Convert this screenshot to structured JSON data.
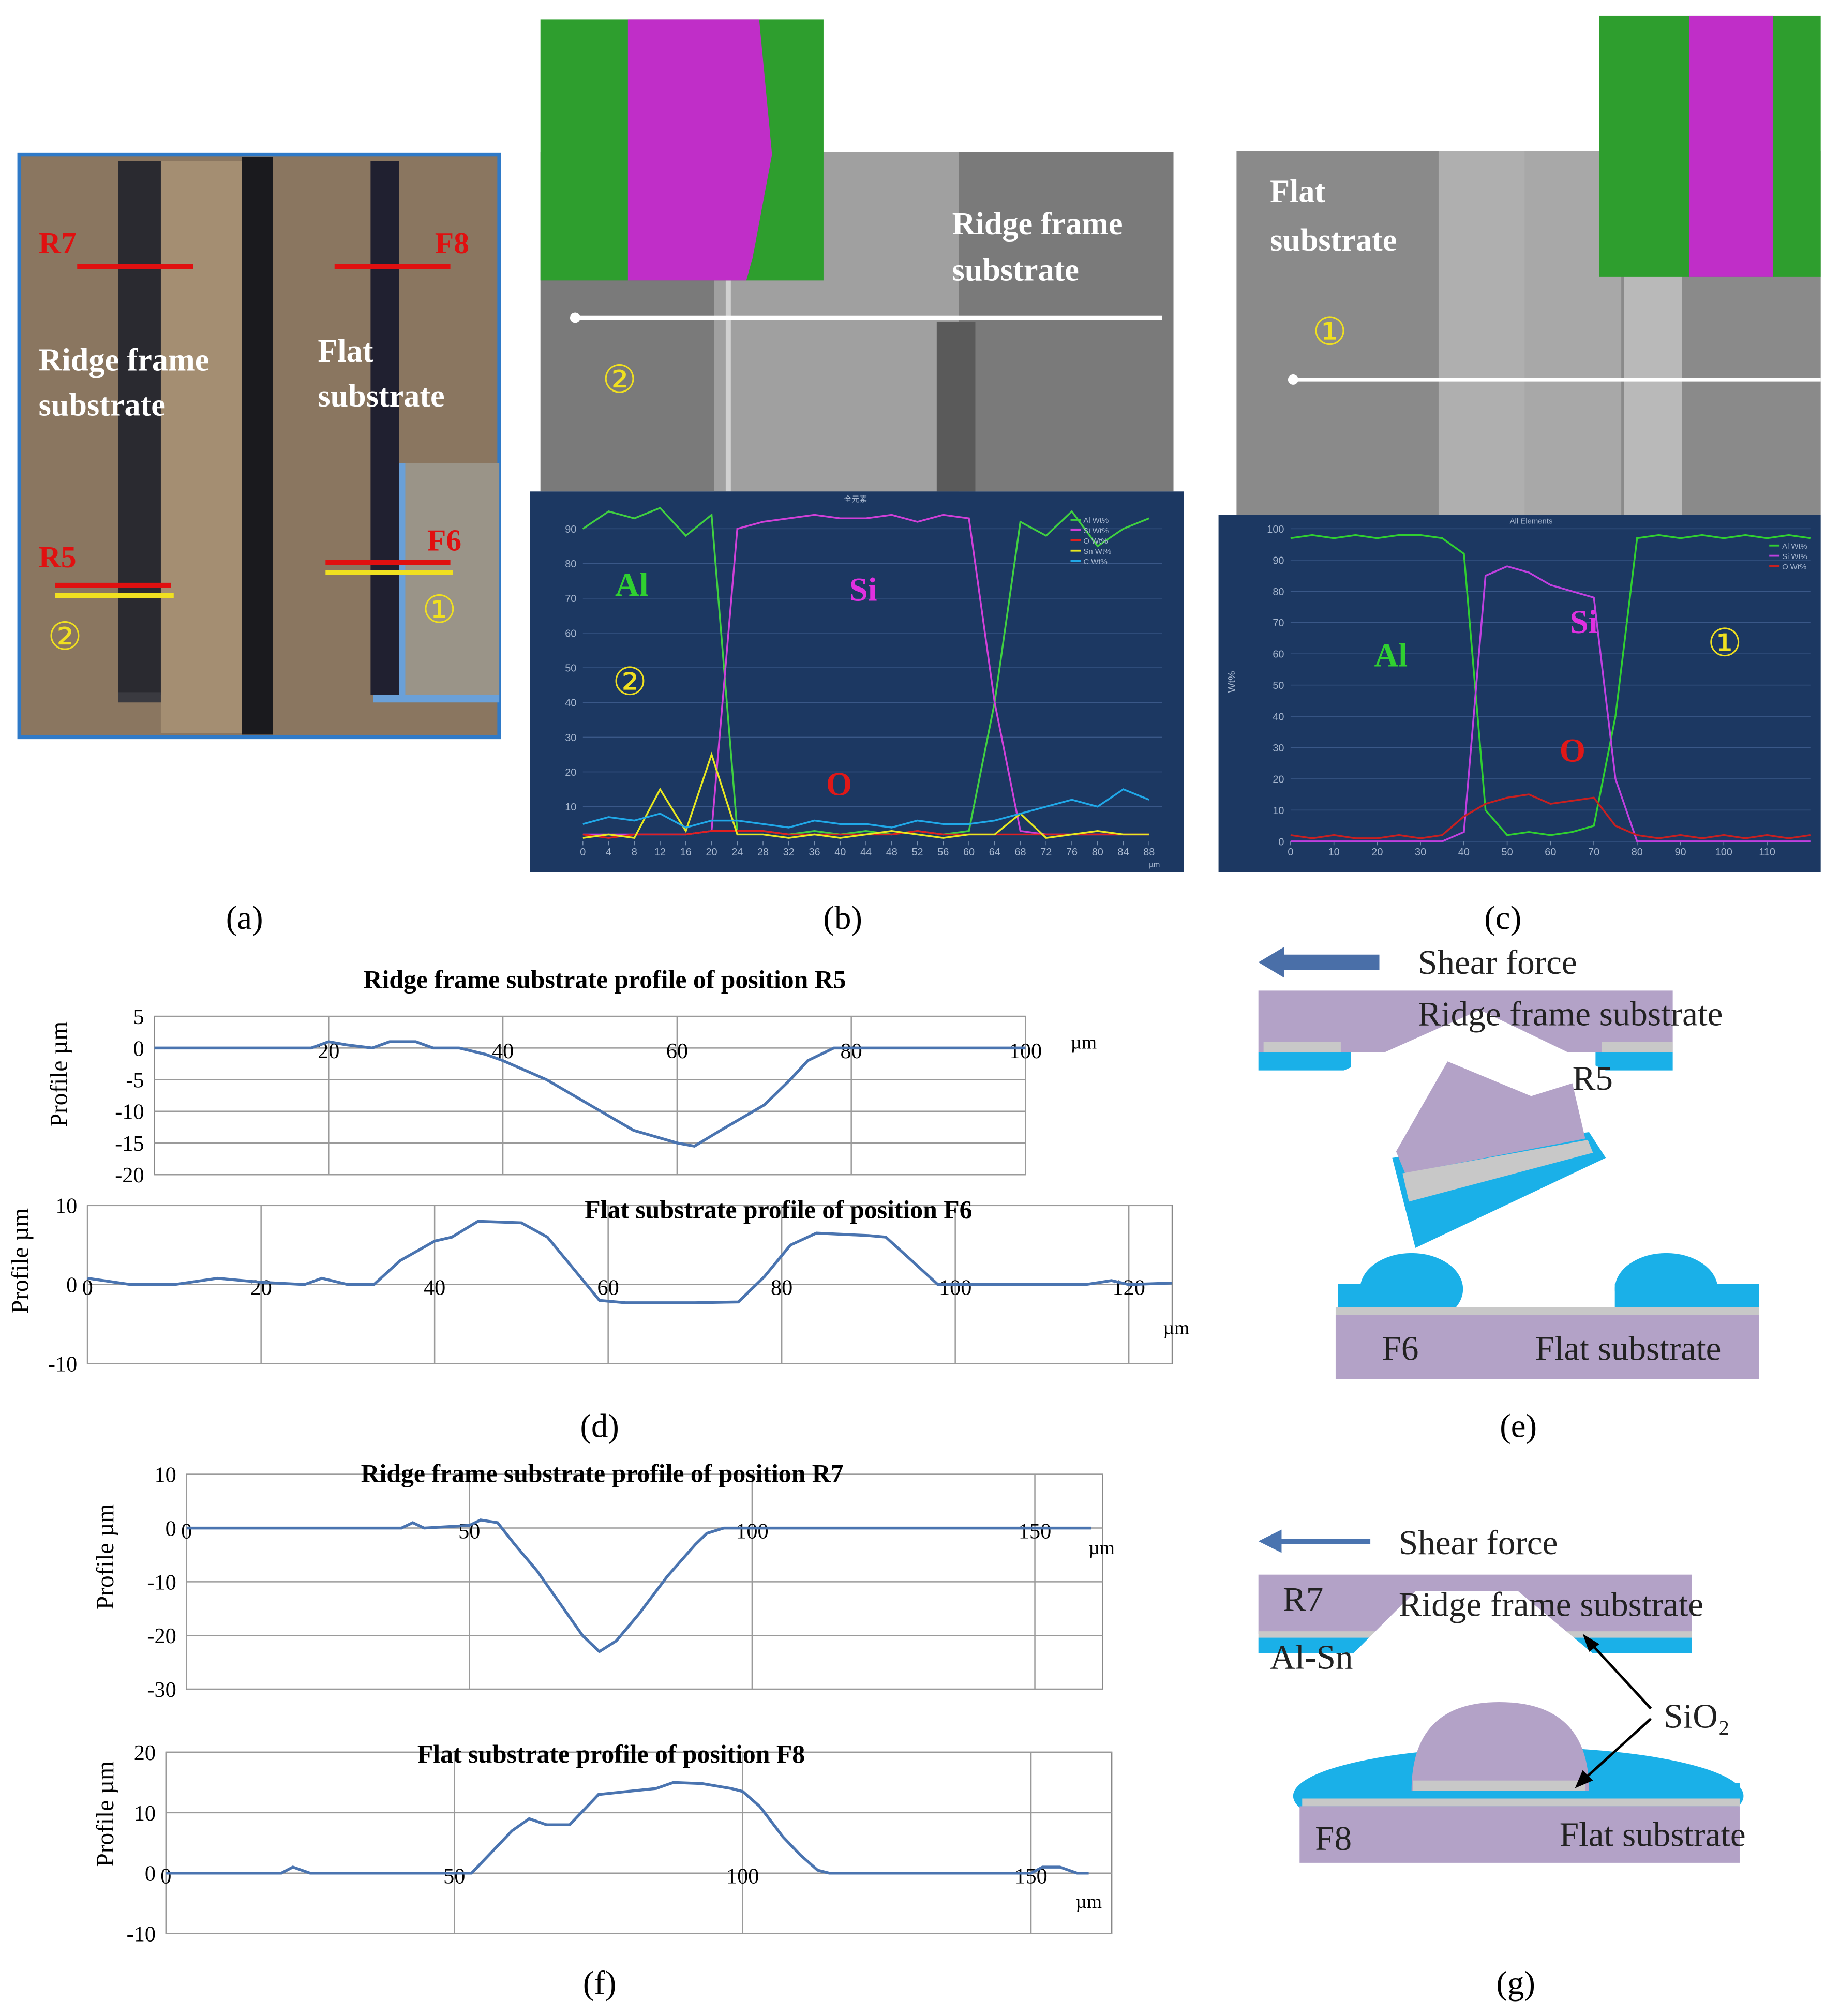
{
  "figure": {
    "labels": [
      "(a)",
      "(b)",
      "(c)",
      "(d)",
      "(e)",
      "(f)",
      "(g)"
    ],
    "a": {
      "texts": [
        "R7",
        "F8",
        "Ridge frame",
        "substrate",
        "Flat",
        "substrate",
        "R5",
        "F6",
        "②",
        "①"
      ]
    },
    "b": {
      "texts": [
        "Ridge frame",
        "substrate",
        "②",
        "Al",
        "Si",
        "O",
        "②"
      ]
    },
    "c": {
      "texts": [
        "Flat",
        "substrate",
        "①",
        "Al",
        "Si",
        "O",
        "①"
      ]
    },
    "e": {
      "texts": [
        "Shear force",
        "Ridge frame substrate",
        "R5",
        "F6",
        "Flat substrate"
      ]
    },
    "g": {
      "texts": [
        "Shear force",
        "R7",
        "Ridge frame substrate",
        "Al-Sn",
        "SiO₂",
        "F8",
        "Flat substrate"
      ]
    }
  },
  "chart_data": [
    {
      "type": "line",
      "title": "全元素",
      "xunit": "µm",
      "x": [
        0,
        4,
        8,
        12,
        16,
        20,
        24,
        28,
        32,
        36,
        40,
        44,
        48,
        52,
        56,
        60,
        64,
        68,
        72,
        76,
        80,
        84,
        88
      ],
      "series": [
        {
          "name": "Al Wt%",
          "color": "#40d040",
          "values": [
            90,
            95,
            93,
            96,
            88,
            94,
            3,
            3,
            2,
            3,
            2,
            3,
            2,
            3,
            2,
            3,
            40,
            92,
            88,
            95,
            85,
            90,
            93
          ]
        },
        {
          "name": "Si Wt%",
          "color": "#d040d8",
          "values": [
            2,
            2,
            2,
            2,
            2,
            3,
            90,
            92,
            93,
            94,
            93,
            93,
            94,
            92,
            94,
            93,
            40,
            3,
            2,
            2,
            2,
            2,
            2
          ]
        },
        {
          "name": "O Wt%",
          "color": "#e02020",
          "values": [
            2,
            1,
            2,
            2,
            2,
            3,
            3,
            3,
            2,
            2,
            2,
            2,
            2,
            3,
            2,
            2,
            2,
            2,
            2,
            2,
            2,
            2,
            2
          ]
        },
        {
          "name": "Sn Wt%",
          "color": "#e8e820",
          "values": [
            1,
            2,
            1,
            15,
            3,
            25,
            2,
            2,
            1,
            2,
            1,
            2,
            3,
            2,
            1,
            2,
            2,
            8,
            1,
            2,
            3,
            2,
            2
          ]
        },
        {
          "name": "C Wt%",
          "color": "#20a8e8",
          "values": [
            5,
            7,
            6,
            8,
            4,
            6,
            6,
            5,
            4,
            6,
            5,
            5,
            4,
            6,
            5,
            5,
            6,
            8,
            10,
            12,
            10,
            15,
            12
          ]
        }
      ],
      "xlim": [
        0,
        90
      ],
      "ylim": [
        0,
        100
      ],
      "xticks": [
        0,
        4,
        8,
        12,
        16,
        20,
        24,
        28,
        32,
        36,
        40,
        44,
        48,
        52,
        56,
        60,
        64,
        68,
        72,
        76,
        80,
        84,
        88
      ],
      "yticks": [
        10,
        20,
        30,
        40,
        50,
        60,
        70,
        80,
        90
      ],
      "grid": true,
      "legend": "top-right"
    },
    {
      "type": "line",
      "title": "All Elements",
      "ylabel": "Wt%",
      "x": [
        0,
        5,
        10,
        15,
        20,
        25,
        30,
        35,
        40,
        45,
        50,
        55,
        60,
        65,
        70,
        75,
        80,
        85,
        90,
        95,
        100,
        105,
        110,
        115,
        120
      ],
      "series": [
        {
          "name": "Al Wt%",
          "color": "#30d030",
          "values": [
            97,
            98,
            97,
            98,
            97,
            98,
            98,
            97,
            92,
            10,
            2,
            3,
            2,
            3,
            5,
            40,
            97,
            98,
            97,
            98,
            97,
            98,
            97,
            98,
            97
          ]
        },
        {
          "name": "Si Wt%",
          "color": "#c040e0",
          "values": [
            0,
            0,
            0,
            0,
            0,
            0,
            0,
            0,
            3,
            85,
            88,
            86,
            82,
            80,
            78,
            20,
            0,
            0,
            0,
            0,
            0,
            0,
            0,
            0,
            0
          ]
        },
        {
          "name": "O Wt%",
          "color": "#c82020",
          "values": [
            2,
            1,
            2,
            1,
            1,
            2,
            1,
            2,
            8,
            12,
            14,
            15,
            12,
            13,
            14,
            5,
            2,
            1,
            2,
            1,
            2,
            1,
            2,
            1,
            2
          ]
        }
      ],
      "xlim": [
        0,
        120
      ],
      "ylim": [
        0,
        100
      ],
      "xticks": [
        0,
        10,
        20,
        30,
        40,
        50,
        60,
        70,
        80,
        90,
        100,
        110
      ],
      "yticks": [
        0,
        10,
        20,
        30,
        40,
        50,
        60,
        70,
        80,
        90,
        100
      ],
      "grid": true,
      "legend": "top-right"
    },
    {
      "type": "line",
      "title": "Ridge frame substrate profile of position R5",
      "ylabel": "Profile µm",
      "xunit": "µm",
      "x": [
        0,
        10,
        18,
        20,
        22,
        25,
        27,
        30,
        32,
        35,
        38,
        40,
        45,
        50,
        55,
        60,
        62,
        65,
        70,
        73,
        75,
        78,
        80,
        90,
        100
      ],
      "series": [
        {
          "color": "#4a74b0",
          "values": [
            0,
            0,
            0,
            1,
            0.5,
            0,
            1,
            1,
            0,
            0,
            -1,
            -2,
            -5,
            -9,
            -13,
            -15,
            -15.5,
            -13,
            -9,
            -5,
            -2,
            0,
            0,
            0,
            0
          ]
        }
      ],
      "xlim": [
        0,
        100
      ],
      "ylim": [
        -20,
        5
      ],
      "xticks": [
        20,
        40,
        60,
        80,
        100
      ],
      "yticks": [
        5,
        0,
        -5,
        -10,
        -15,
        -20
      ],
      "grid": true
    },
    {
      "type": "line",
      "title": "Flat substrate profile of position F6",
      "ylabel": "Profile µm",
      "xunit": "µm",
      "x": [
        0,
        5,
        10,
        15,
        20,
        25,
        27,
        30,
        33,
        36,
        40,
        42,
        45,
        50,
        53,
        56,
        59,
        62,
        70,
        75,
        78,
        81,
        84,
        90,
        92,
        95,
        98,
        100,
        110,
        115,
        118,
        120,
        125
      ],
      "series": [
        {
          "color": "#4a74b0",
          "values": [
            0.8,
            0,
            0,
            0.8,
            0.3,
            0,
            0.8,
            0,
            0,
            3,
            5.5,
            6,
            8,
            7.8,
            6,
            2,
            -2,
            -2.3,
            -2.3,
            -2.2,
            1,
            5,
            6.5,
            6.2,
            6,
            3,
            0,
            0,
            0,
            0,
            0.5,
            0,
            0.2
          ]
        }
      ],
      "xlim": [
        0,
        125
      ],
      "ylim": [
        -10,
        10
      ],
      "xticks": [
        0,
        20,
        40,
        60,
        80,
        100,
        120
      ],
      "yticks": [
        10,
        0,
        -10
      ],
      "grid": true
    },
    {
      "type": "line",
      "title": "Ridge frame substrate profile of  position R7",
      "ylabel": "Profile µm",
      "xunit": "µm",
      "x": [
        0,
        20,
        38,
        40,
        42,
        50,
        52,
        55,
        58,
        62,
        66,
        70,
        73,
        76,
        80,
        85,
        90,
        92,
        95,
        110,
        130,
        150,
        160
      ],
      "series": [
        {
          "color": "#4a74b0",
          "values": [
            0,
            0,
            0,
            1,
            0,
            0.5,
            1.5,
            1,
            -3,
            -8,
            -14,
            -20,
            -23,
            -21,
            -16,
            -9,
            -3,
            -1,
            0,
            0,
            0,
            0,
            0
          ]
        }
      ],
      "xlim": [
        0,
        162
      ],
      "ylim": [
        -30,
        10
      ],
      "xticks": [
        0,
        50,
        100,
        150
      ],
      "yticks": [
        10,
        0,
        -10,
        -20,
        -30
      ],
      "grid": true
    },
    {
      "type": "line",
      "title": "Flat substrate profile of position F8",
      "ylabel": "Profile µm",
      "xunit": "µm",
      "x": [
        0,
        10,
        20,
        22,
        25,
        30,
        50,
        53,
        56,
        60,
        63,
        66,
        70,
        73,
        75,
        80,
        85,
        88,
        93,
        98,
        100,
        103,
        107,
        110,
        113,
        115,
        120,
        140,
        150,
        152,
        155,
        158,
        160
      ],
      "series": [
        {
          "color": "#4a74b0",
          "values": [
            0,
            0,
            0,
            1,
            0,
            0,
            0,
            0,
            3,
            7,
            9,
            8,
            8,
            11,
            13,
            13.5,
            14,
            15,
            14.8,
            14,
            13.5,
            11,
            6,
            3,
            0.5,
            0,
            0,
            0,
            0,
            1,
            1,
            0,
            0
          ]
        }
      ],
      "xlim": [
        0,
        164
      ],
      "ylim": [
        -10,
        20
      ],
      "xticks": [
        0,
        50,
        100,
        150
      ],
      "yticks": [
        20,
        10,
        0,
        -10
      ],
      "grid": true
    }
  ]
}
